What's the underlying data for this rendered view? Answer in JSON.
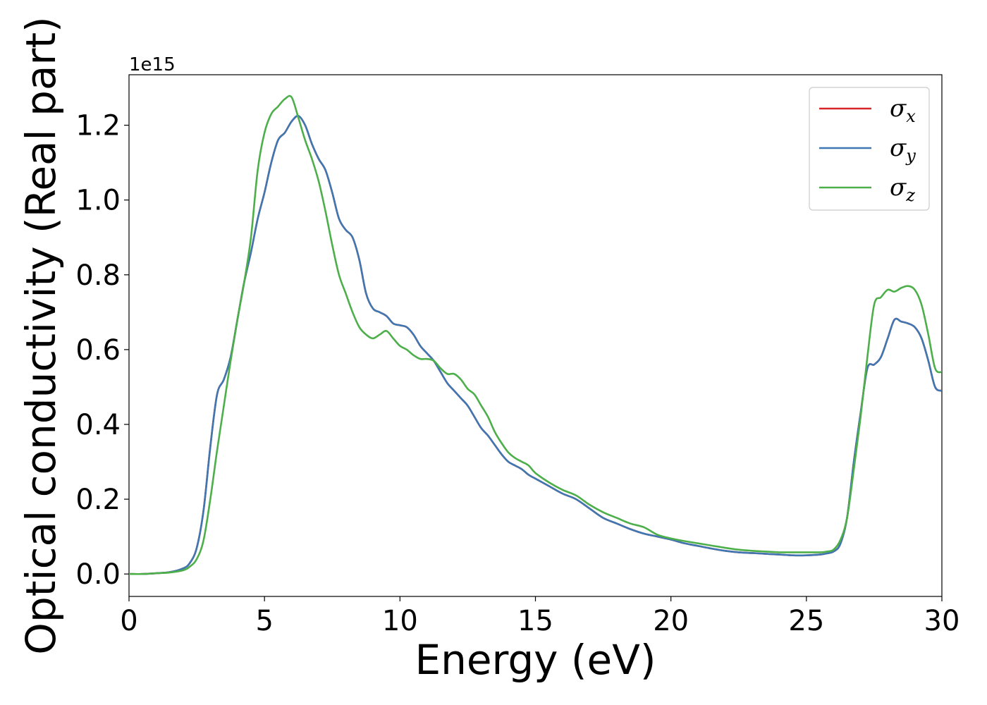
{
  "chart_data": {
    "type": "line",
    "xlabel": "Energy (eV)",
    "ylabel": "Optical conductivity (Real part)",
    "y_offset_label": "1e15",
    "xlim": [
      0,
      30
    ],
    "ylim": [
      -0.06,
      1.335
    ],
    "xticks": [
      0,
      5,
      10,
      15,
      20,
      25,
      30
    ],
    "xtick_labels": [
      "0",
      "5",
      "10",
      "15",
      "20",
      "25",
      "30"
    ],
    "yticks": [
      0.0,
      0.2,
      0.4,
      0.6,
      0.8,
      1.0,
      1.2
    ],
    "ytick_labels": [
      "0.0",
      "0.2",
      "0.4",
      "0.6",
      "0.8",
      "1.0",
      "1.2"
    ],
    "grid": false,
    "legend_position": "top-right",
    "x": [
      0,
      0.5,
      1.0,
      1.5,
      2.0,
      2.25,
      2.5,
      2.75,
      3.0,
      3.25,
      3.5,
      3.75,
      4.0,
      4.25,
      4.5,
      4.75,
      5.0,
      5.25,
      5.5,
      5.75,
      6.0,
      6.25,
      6.5,
      6.75,
      7.0,
      7.25,
      7.5,
      7.75,
      8.0,
      8.25,
      8.5,
      8.75,
      9.0,
      9.25,
      9.5,
      9.75,
      10.0,
      10.25,
      10.5,
      10.75,
      11.0,
      11.25,
      11.5,
      11.75,
      12.0,
      12.25,
      12.5,
      12.75,
      13.0,
      13.25,
      13.5,
      13.75,
      14.0,
      14.25,
      14.5,
      14.75,
      15.0,
      15.5,
      16.0,
      16.5,
      17.0,
      17.5,
      18.0,
      18.5,
      19.0,
      19.5,
      20.0,
      20.5,
      21.0,
      21.5,
      22.0,
      22.5,
      23.0,
      23.5,
      24.0,
      24.5,
      25.0,
      25.5,
      25.75,
      26.0,
      26.25,
      26.5,
      26.75,
      27.0,
      27.25,
      27.5,
      27.75,
      28.0,
      28.25,
      28.5,
      28.75,
      29.0,
      29.25,
      29.5,
      29.75,
      30.0
    ],
    "series": [
      {
        "name": "σ_x",
        "label_base": "σ",
        "label_sub": "x",
        "color": "#d62728",
        "values": [
          0.0,
          0.0,
          0.002,
          0.005,
          0.015,
          0.03,
          0.07,
          0.17,
          0.34,
          0.48,
          0.52,
          0.58,
          0.68,
          0.78,
          0.86,
          0.95,
          1.02,
          1.1,
          1.16,
          1.18,
          1.21,
          1.225,
          1.2,
          1.15,
          1.11,
          1.08,
          1.02,
          0.95,
          0.92,
          0.9,
          0.84,
          0.75,
          0.71,
          0.7,
          0.69,
          0.67,
          0.665,
          0.66,
          0.64,
          0.61,
          0.59,
          0.57,
          0.54,
          0.51,
          0.49,
          0.47,
          0.45,
          0.42,
          0.39,
          0.37,
          0.345,
          0.32,
          0.3,
          0.29,
          0.28,
          0.265,
          0.255,
          0.235,
          0.215,
          0.2,
          0.175,
          0.15,
          0.135,
          0.12,
          0.108,
          0.1,
          0.092,
          0.082,
          0.075,
          0.068,
          0.062,
          0.058,
          0.056,
          0.054,
          0.052,
          0.05,
          0.05,
          0.052,
          0.055,
          0.06,
          0.08,
          0.15,
          0.3,
          0.43,
          0.55,
          0.56,
          0.58,
          0.63,
          0.68,
          0.675,
          0.67,
          0.66,
          0.63,
          0.57,
          0.5,
          0.49
        ]
      },
      {
        "name": "σ_y",
        "label_base": "σ",
        "label_sub": "y",
        "color": "#3f77b2",
        "values": [
          0.0,
          0.0,
          0.002,
          0.005,
          0.015,
          0.03,
          0.07,
          0.17,
          0.34,
          0.48,
          0.52,
          0.58,
          0.68,
          0.78,
          0.86,
          0.95,
          1.02,
          1.1,
          1.16,
          1.18,
          1.21,
          1.225,
          1.2,
          1.15,
          1.11,
          1.08,
          1.02,
          0.95,
          0.92,
          0.9,
          0.84,
          0.75,
          0.71,
          0.7,
          0.69,
          0.67,
          0.665,
          0.66,
          0.64,
          0.61,
          0.59,
          0.57,
          0.54,
          0.51,
          0.49,
          0.47,
          0.45,
          0.42,
          0.39,
          0.37,
          0.345,
          0.32,
          0.3,
          0.29,
          0.28,
          0.265,
          0.255,
          0.235,
          0.215,
          0.2,
          0.175,
          0.15,
          0.135,
          0.12,
          0.108,
          0.1,
          0.092,
          0.082,
          0.075,
          0.068,
          0.062,
          0.058,
          0.056,
          0.054,
          0.052,
          0.05,
          0.05,
          0.052,
          0.055,
          0.06,
          0.08,
          0.15,
          0.3,
          0.43,
          0.55,
          0.56,
          0.58,
          0.63,
          0.68,
          0.675,
          0.67,
          0.66,
          0.63,
          0.57,
          0.5,
          0.49
        ]
      },
      {
        "name": "σ_z",
        "label_base": "σ",
        "label_sub": "z",
        "color": "#4daf4a",
        "values": [
          0.0,
          0.0,
          0.002,
          0.004,
          0.01,
          0.02,
          0.04,
          0.09,
          0.2,
          0.33,
          0.45,
          0.57,
          0.68,
          0.78,
          0.9,
          1.08,
          1.18,
          1.23,
          1.25,
          1.27,
          1.275,
          1.22,
          1.16,
          1.11,
          1.05,
          0.97,
          0.88,
          0.8,
          0.75,
          0.7,
          0.66,
          0.64,
          0.63,
          0.64,
          0.65,
          0.63,
          0.61,
          0.6,
          0.585,
          0.575,
          0.575,
          0.57,
          0.55,
          0.535,
          0.535,
          0.52,
          0.495,
          0.48,
          0.45,
          0.42,
          0.38,
          0.35,
          0.325,
          0.31,
          0.3,
          0.29,
          0.27,
          0.245,
          0.225,
          0.21,
          0.185,
          0.165,
          0.15,
          0.135,
          0.125,
          0.105,
          0.095,
          0.088,
          0.082,
          0.076,
          0.07,
          0.065,
          0.062,
          0.06,
          0.058,
          0.058,
          0.058,
          0.058,
          0.06,
          0.065,
          0.09,
          0.15,
          0.28,
          0.42,
          0.58,
          0.72,
          0.74,
          0.76,
          0.755,
          0.765,
          0.77,
          0.76,
          0.72,
          0.64,
          0.55,
          0.54
        ]
      }
    ]
  }
}
